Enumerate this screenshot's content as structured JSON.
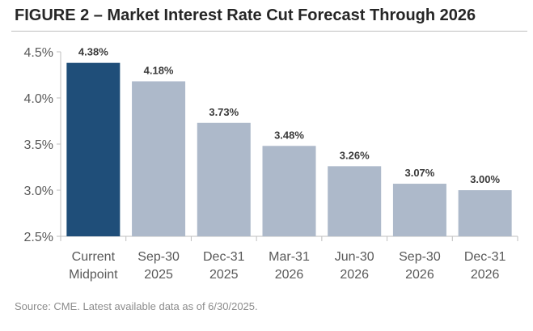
{
  "title": "FIGURE 2 – Market Interest Rate Cut Forecast Through 2026",
  "source": "Source: CME. Latest available data as of 6/30/2025.",
  "chart_data": {
    "type": "bar",
    "categories": [
      [
        "Current",
        "Midpoint"
      ],
      [
        "Sep-30",
        "2025"
      ],
      [
        "Dec-31",
        "2025"
      ],
      [
        "Mar-31",
        "2026"
      ],
      [
        "Jun-30",
        "2026"
      ],
      [
        "Sep-30",
        "2026"
      ],
      [
        "Dec-31",
        "2026"
      ]
    ],
    "values": [
      4.38,
      4.18,
      3.73,
      3.48,
      3.26,
      3.07,
      3.0
    ],
    "data_labels": [
      "4.38%",
      "4.18%",
      "3.73%",
      "3.48%",
      "3.26%",
      "3.07%",
      "3.00%"
    ],
    "ylim": [
      2.5,
      4.5
    ],
    "yticks": [
      2.5,
      3.0,
      3.5,
      4.0,
      4.5
    ],
    "ytick_labels": [
      "2.5%",
      "3.0%",
      "3.5%",
      "4.0%",
      "4.5%"
    ],
    "xlabel": "",
    "ylabel": "",
    "colors": {
      "highlight": "#1f4e79",
      "bar": "#adb9ca",
      "axis": "#bfbfbf"
    }
  }
}
